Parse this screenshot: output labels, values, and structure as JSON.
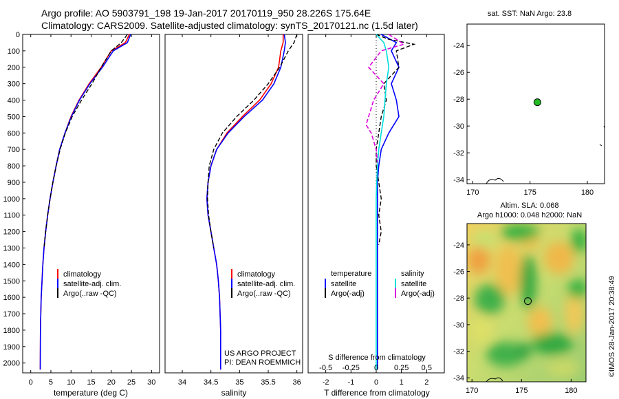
{
  "header": {
    "line1": "Argo profile: AO 5903791_198 19-Jan-2017 20170119_950 28.226S 175.64E",
    "line2": "Climatology: CARS2009. Satellite-adjusted climatology: synTS_20170121.nc (1.5d later)"
  },
  "colors": {
    "climatology": "#ff0000",
    "satellite": "#0000ff",
    "argo": "#000000",
    "salinity_satellite": "#00dddd",
    "salinity_argo": "#dd00dd",
    "map_marker": "#22bb22"
  },
  "chart_data": [
    {
      "type": "line",
      "panel": "temperature",
      "xlabel": "temperature (deg C)",
      "xlim": [
        -2,
        32
      ],
      "ylim": [
        2060,
        0
      ],
      "xticks": [
        0,
        5,
        10,
        15,
        20,
        25,
        30
      ],
      "yticks": [
        0,
        100,
        200,
        300,
        400,
        500,
        600,
        700,
        800,
        900,
        1000,
        1100,
        1200,
        1300,
        1400,
        1500,
        1600,
        1700,
        1800,
        1900,
        2000
      ],
      "legend": [
        "climatology",
        "satellite-adj. clim.",
        "Argo(..raw -QC)"
      ],
      "series": [
        {
          "name": "climatology",
          "x": [
            24.5,
            23.5,
            20,
            17.5,
            14.5,
            12,
            10,
            8.5,
            7.2,
            6.3,
            5.5,
            4.8,
            4.2,
            3.7,
            3.3,
            3.0,
            2.8,
            2.6,
            2.5,
            2.4,
            2.35
          ],
          "y": [
            0,
            50,
            100,
            200,
            300,
            400,
            500,
            600,
            700,
            800,
            900,
            1000,
            1100,
            1200,
            1300,
            1400,
            1500,
            1600,
            1700,
            1800,
            2040
          ]
        },
        {
          "name": "satellite-adj. clim.",
          "x": [
            24.8,
            24,
            20.5,
            17.8,
            14.7,
            12.1,
            10.1,
            8.5,
            7.2,
            6.3,
            5.5,
            4.8,
            4.2,
            3.7,
            3.3,
            3.0,
            2.8,
            2.6,
            2.5,
            2.4,
            2.35
          ],
          "y": [
            0,
            50,
            100,
            200,
            300,
            400,
            500,
            600,
            700,
            800,
            900,
            1000,
            1100,
            1200,
            1300,
            1400,
            1500,
            1600,
            1700,
            1800,
            2040
          ]
        },
        {
          "name": "Argo(..raw -QC)",
          "x": [
            24,
            22.5,
            20,
            17.5,
            15.2,
            12.6,
            10.3,
            8.6,
            7.3,
            6.3,
            5.5,
            4.8,
            4.2,
            3.7,
            3.3
          ],
          "y": [
            0,
            50,
            100,
            200,
            300,
            400,
            500,
            600,
            700,
            800,
            900,
            1000,
            1100,
            1200,
            1300
          ]
        }
      ]
    },
    {
      "type": "line",
      "panel": "salinity",
      "xlabel": "salinity",
      "xlim": [
        33.7,
        36.1
      ],
      "ylim": [
        2060,
        0
      ],
      "xticks": [
        34,
        34.5,
        35,
        35.5,
        36
      ],
      "legend": [
        "climatology",
        "satellite-adj. clim.",
        "Argo(..raw -QC)"
      ],
      "annotation": [
        "US ARGO PROJECT",
        "PI: DEAN ROEMMICH"
      ],
      "series": [
        {
          "name": "climatology",
          "x": [
            35.76,
            35.76,
            35.72,
            35.68,
            35.55,
            35.35,
            35.05,
            34.78,
            34.6,
            34.5,
            34.45,
            34.43,
            34.45,
            34.5,
            34.55,
            34.6,
            34.63,
            34.65,
            34.66,
            34.67,
            34.67
          ],
          "y": [
            0,
            50,
            100,
            200,
            300,
            400,
            500,
            600,
            700,
            800,
            900,
            1000,
            1100,
            1200,
            1300,
            1400,
            1500,
            1600,
            1700,
            1800,
            2040
          ]
        },
        {
          "name": "satellite-adj. clim.",
          "x": [
            35.78,
            35.8,
            35.78,
            35.72,
            35.6,
            35.4,
            35.08,
            34.8,
            34.6,
            34.5,
            34.45,
            34.43,
            34.45,
            34.5,
            34.55,
            34.6,
            34.63,
            34.65,
            34.66,
            34.67,
            34.67
          ],
          "y": [
            0,
            50,
            100,
            200,
            300,
            400,
            500,
            600,
            700,
            800,
            900,
            1000,
            1100,
            1200,
            1300,
            1400,
            1500,
            1600,
            1700,
            1800,
            2040
          ]
        },
        {
          "name": "Argo(..raw -QC)",
          "x": [
            36.0,
            35.95,
            35.85,
            35.7,
            35.5,
            35.25,
            34.95,
            34.7,
            34.55,
            34.47,
            34.45,
            34.44,
            34.46,
            34.5,
            34.55
          ],
          "y": [
            0,
            50,
            100,
            200,
            300,
            400,
            500,
            600,
            700,
            800,
            900,
            1000,
            1100,
            1200,
            1300
          ]
        }
      ]
    },
    {
      "type": "line",
      "panel": "differences",
      "xlabel": "T difference from climatology",
      "xlabel_top": "S difference from climatology",
      "xlim": [
        -2.7,
        2.7
      ],
      "ylim": [
        2060,
        0
      ],
      "xticks": [
        -2,
        -1,
        0,
        1,
        2
      ],
      "s_xticks": [
        "-0.5",
        "-0.25",
        "0",
        "0.25",
        "0.5"
      ],
      "legend_headers": [
        "temperature",
        "salinity"
      ],
      "legend": [
        "satellite",
        "Argo(-adj)",
        "satellite",
        "Argo(-adj)"
      ],
      "series": [
        {
          "name": "temperature satellite",
          "x": [
            0.2,
            0.8,
            0.6,
            0.9,
            0.6,
            0.8,
            0.9,
            0.5,
            0.2,
            0.1,
            0.05,
            0.05,
            0.05,
            0.05,
            0.05,
            0.05,
            0.05,
            0.05
          ],
          "y": [
            0,
            50,
            100,
            200,
            300,
            400,
            500,
            600,
            700,
            800,
            900,
            1000,
            1100,
            1200,
            1400,
            1600,
            1800,
            2040
          ]
        },
        {
          "name": "temperature Argo(-adj)",
          "x": [
            0,
            0.5,
            1.5,
            0.8,
            0.9,
            0.3,
            0.4,
            0.2,
            0.1,
            0,
            0,
            0.1,
            0.2,
            0.1,
            0.2,
            0.1
          ],
          "y": [
            0,
            30,
            60,
            100,
            200,
            300,
            400,
            500,
            600,
            700,
            800,
            900,
            1000,
            1100,
            1200,
            1280
          ]
        },
        {
          "name": "salinity satellite",
          "x": [
            0,
            0.3,
            0.4,
            0.5,
            0.4,
            0.35,
            0.3,
            0.2,
            0.1,
            0.05,
            0.02,
            0,
            0,
            0,
            0,
            0
          ],
          "y": [
            0,
            50,
            100,
            200,
            300,
            400,
            500,
            600,
            700,
            800,
            900,
            1000,
            1200,
            1400,
            1700,
            2040
          ]
        },
        {
          "name": "salinity Argo(-adj)",
          "x": [
            0.5,
            1.1,
            0.2,
            -0.3,
            0.3,
            -0.1,
            -0.4,
            -0.2,
            0,
            0.05
          ],
          "y": [
            0,
            60,
            100,
            200,
            300,
            400,
            550,
            600,
            700,
            780
          ]
        }
      ]
    },
    {
      "type": "scatter",
      "panel": "sst-map",
      "title": "sat. SST: NaN Argo: 23.8",
      "xlim": [
        169.5,
        181.5
      ],
      "ylim": [
        -34.3,
        -22.4
      ],
      "xticks": [
        170,
        175,
        180
      ],
      "yticks": [
        -24,
        -26,
        -28,
        -30,
        -32,
        -34
      ],
      "points": [
        {
          "x": 175.64,
          "y": -28.226
        }
      ]
    },
    {
      "type": "heatmap",
      "panel": "sla-map",
      "title_line1": "Altim. SLA: 0.068",
      "title_line2": "Argo h1000: 0.048 h2000: NaN",
      "xlim": [
        169.5,
        181.5
      ],
      "ylim": [
        -34.3,
        -22.4
      ],
      "xticks": [
        170,
        175,
        180
      ],
      "yticks": [
        -24,
        -26,
        -28,
        -30,
        -32,
        -34
      ],
      "points": [
        {
          "x": 175.64,
          "y": -28.226
        }
      ]
    }
  ],
  "side_stamp": "©IMOS 28-Jan-2017 20:38:49"
}
